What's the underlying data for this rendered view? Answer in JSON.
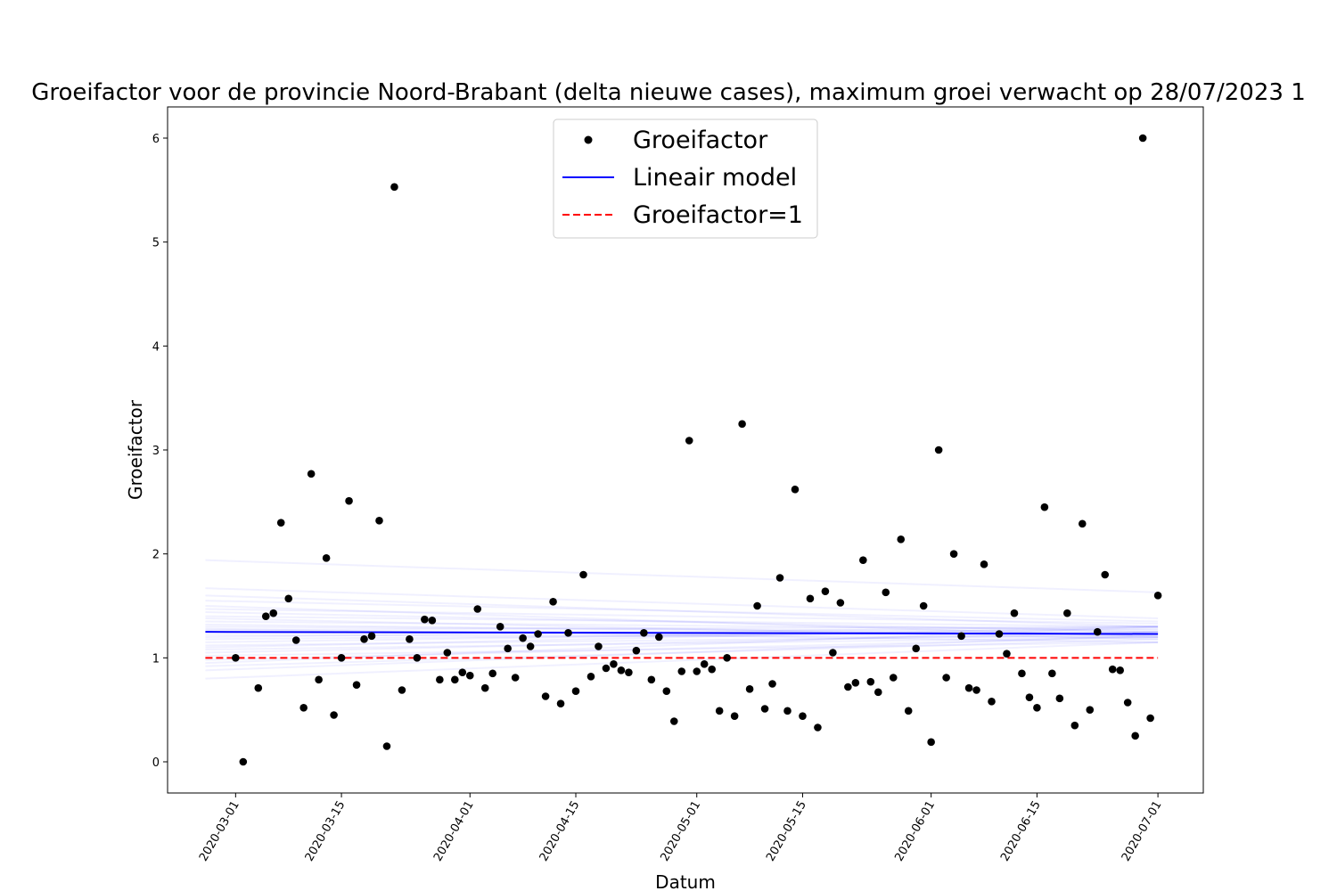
{
  "chart_data": {
    "type": "scatter",
    "title": "Groeifactor voor de provincie Noord-Brabant (delta nieuwe cases), maximum groei verwacht op 28/07/2023 1",
    "xlabel": "Datum",
    "ylabel": "Groeifactor",
    "xlim": [
      "2020-02-21",
      "2020-07-07"
    ],
    "ylim": [
      -0.3,
      6.3
    ],
    "xticks": [
      "2020-03-01",
      "2020-03-15",
      "2020-04-01",
      "2020-04-15",
      "2020-05-01",
      "2020-05-15",
      "2020-06-01",
      "2020-06-15",
      "2020-07-01"
    ],
    "yticks": [
      0,
      1,
      2,
      3,
      4,
      5,
      6
    ],
    "legend": {
      "placement": "top-center",
      "entries": [
        "Groeifactor",
        "Lineair model",
        "Groeifactor=1"
      ]
    },
    "series": [
      {
        "name": "Groeifactor",
        "style": "points",
        "color": "#000000",
        "x_start": "2020-03-01",
        "y": [
          1.0,
          0.0,
          null,
          0.71,
          1.4,
          1.43,
          2.3,
          1.57,
          1.17,
          0.52,
          2.77,
          0.79,
          1.96,
          0.45,
          1.0,
          2.51,
          0.74,
          1.18,
          1.21,
          2.32,
          0.15,
          5.53,
          0.69,
          1.18,
          1.0,
          1.37,
          1.36,
          0.79,
          1.05,
          0.79,
          0.86,
          0.83,
          1.47,
          0.71,
          0.85,
          1.3,
          1.09,
          0.81,
          1.19,
          1.11,
          1.23,
          0.63,
          1.54,
          0.56,
          1.24,
          0.68,
          1.8,
          0.82,
          1.11,
          0.9,
          0.94,
          0.88,
          0.86,
          1.07,
          1.24,
          0.79,
          1.2,
          0.68,
          0.39,
          0.87,
          3.09,
          0.87,
          0.94,
          0.89,
          0.49,
          1.0,
          0.44,
          3.25,
          0.7,
          1.5,
          0.51,
          0.75,
          1.77,
          0.49,
          2.62,
          0.44,
          1.57,
          0.33,
          1.64,
          1.05,
          1.53,
          0.72,
          0.76,
          1.94,
          0.77,
          0.67,
          1.63,
          0.81,
          2.14,
          0.49,
          1.09,
          1.5,
          0.19,
          3.0,
          0.81,
          2.0,
          1.21,
          0.71,
          0.69,
          1.9,
          0.58,
          1.23,
          1.04,
          1.43,
          0.85,
          0.62,
          0.52,
          2.45,
          0.85,
          0.61,
          1.43,
          0.35,
          2.29,
          0.5,
          1.25,
          1.8,
          0.89,
          0.88,
          0.57,
          0.25,
          6.0,
          0.42,
          1.6
        ]
      },
      {
        "name": "Lineair model",
        "style": "line",
        "color": "#0000ff",
        "x": [
          "2020-02-26",
          "2020-07-01"
        ],
        "y": [
          1.25,
          1.23
        ]
      },
      {
        "name": "Groeifactor=1",
        "style": "dashed",
        "color": "#ff0000",
        "x": [
          "2020-02-26",
          "2020-07-01"
        ],
        "y": [
          1.0,
          1.0
        ]
      }
    ],
    "bootstrap_lines": {
      "color": "#0000ff",
      "opacity": 0.06,
      "x": [
        "2020-02-26",
        "2020-07-01"
      ],
      "lines": [
        [
          1.94,
          1.63
        ],
        [
          1.67,
          1.38
        ],
        [
          1.6,
          1.3
        ],
        [
          1.55,
          1.35
        ],
        [
          1.5,
          1.2
        ],
        [
          1.47,
          1.33
        ],
        [
          1.44,
          1.25
        ],
        [
          1.4,
          1.3
        ],
        [
          1.38,
          1.18
        ],
        [
          1.35,
          1.27
        ],
        [
          1.32,
          1.22
        ],
        [
          1.3,
          1.25
        ],
        [
          1.28,
          1.15
        ],
        [
          1.27,
          1.3
        ],
        [
          1.22,
          1.2
        ],
        [
          1.2,
          1.3
        ],
        [
          1.18,
          1.25
        ],
        [
          1.15,
          1.28
        ],
        [
          1.12,
          1.22
        ],
        [
          1.1,
          1.3
        ],
        [
          1.08,
          1.2
        ],
        [
          1.05,
          1.25
        ],
        [
          1.02,
          1.15
        ],
        [
          0.98,
          1.2
        ],
        [
          0.95,
          1.3
        ],
        [
          0.92,
          1.18
        ],
        [
          0.88,
          1.22
        ],
        [
          0.8,
          1.15
        ]
      ]
    }
  }
}
